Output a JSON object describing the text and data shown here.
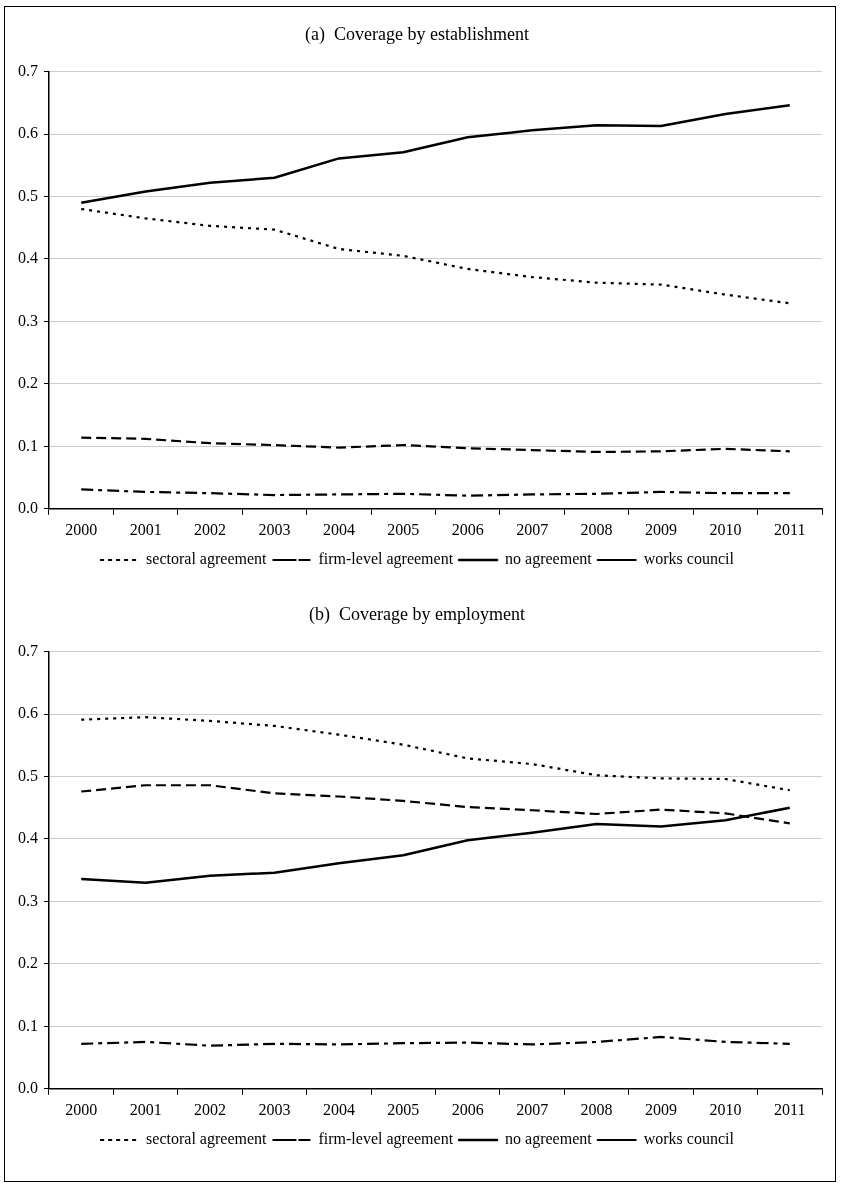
{
  "chart_data": [
    {
      "type": "line",
      "title": "(a)  Coverage by establishment",
      "categories": [
        "2000",
        "2001",
        "2002",
        "2003",
        "2004",
        "2005",
        "2006",
        "2007",
        "2008",
        "2009",
        "2010",
        "2011"
      ],
      "series": [
        {
          "name": "sectoral agreement",
          "color": "#000000",
          "line_style": "dotted",
          "values": [
            0.48,
            0.465,
            0.453,
            0.447,
            0.416,
            0.405,
            0.384,
            0.371,
            0.362,
            0.359,
            0.343,
            0.329
          ]
        },
        {
          "name": "firm-level agreement",
          "color": "#000000",
          "line_style": "dashdot",
          "values": [
            0.031,
            0.027,
            0.025,
            0.022,
            0.023,
            0.024,
            0.021,
            0.023,
            0.024,
            0.027,
            0.025,
            0.025
          ]
        },
        {
          "name": "no agreement",
          "color": "#000000",
          "line_style": "solid",
          "values": [
            0.49,
            0.508,
            0.522,
            0.53,
            0.561,
            0.571,
            0.595,
            0.606,
            0.614,
            0.613,
            0.632,
            0.646
          ]
        },
        {
          "name": "works council",
          "color": "#000000",
          "line_style": "dashed",
          "values": [
            0.114,
            0.112,
            0.105,
            0.102,
            0.098,
            0.102,
            0.097,
            0.094,
            0.091,
            0.092,
            0.096,
            0.092
          ]
        }
      ],
      "ylim": [
        0,
        0.7
      ],
      "yticks": [
        {
          "value": 0,
          "label": "0.0"
        },
        0.1,
        0.2,
        0.3,
        0.4,
        0.5,
        0.6,
        0.7
      ],
      "grid": "y",
      "legend": "bottom",
      "marker": "none"
    },
    {
      "type": "line",
      "title": "(b)  Coverage by employment",
      "categories": [
        "2000",
        "2001",
        "2002",
        "2003",
        "2004",
        "2005",
        "2006",
        "2007",
        "2008",
        "2009",
        "2010",
        "2011"
      ],
      "series": [
        {
          "name": "sectoral agreement",
          "color": "#000000",
          "line_style": "dotted",
          "values": [
            0.591,
            0.595,
            0.589,
            0.581,
            0.567,
            0.551,
            0.529,
            0.52,
            0.502,
            0.497,
            0.496,
            0.478
          ]
        },
        {
          "name": "firm-level agreement",
          "color": "#000000",
          "line_style": "dashdot",
          "values": [
            0.072,
            0.075,
            0.069,
            0.072,
            0.071,
            0.073,
            0.074,
            0.071,
            0.075,
            0.083,
            0.075,
            0.072
          ]
        },
        {
          "name": "no agreement",
          "color": "#000000",
          "line_style": "solid",
          "values": [
            0.336,
            0.33,
            0.341,
            0.346,
            0.361,
            0.374,
            0.398,
            0.41,
            0.424,
            0.42,
            0.43,
            0.45
          ]
        },
        {
          "name": "works council",
          "color": "#000000",
          "line_style": "dashed",
          "values": [
            0.476,
            0.486,
            0.486,
            0.473,
            0.468,
            0.461,
            0.451,
            0.446,
            0.44,
            0.447,
            0.441,
            0.425
          ]
        }
      ],
      "ylim": [
        0,
        0.7
      ],
      "yticks": [
        {
          "value": 0,
          "label": "0.0"
        },
        0.1,
        0.2,
        0.3,
        0.4,
        0.5,
        0.6,
        0.7
      ],
      "grid": "y",
      "legend": "bottom",
      "marker": "none"
    }
  ]
}
